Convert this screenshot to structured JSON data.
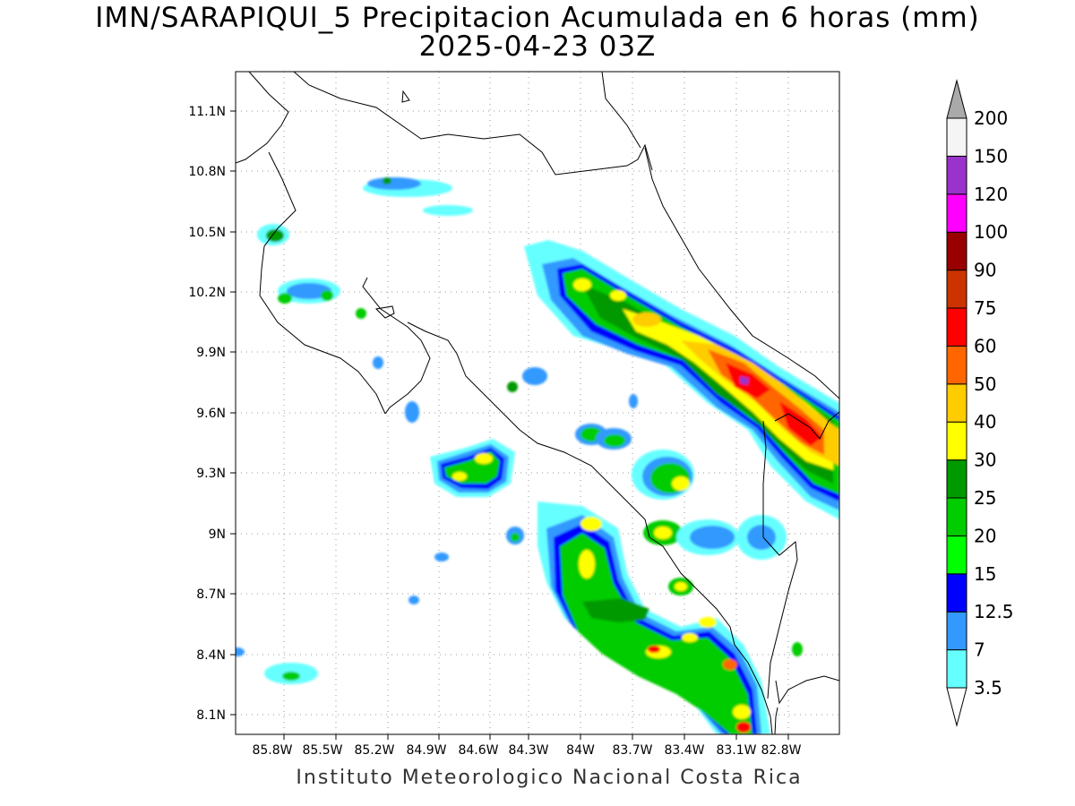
{
  "title_line1": "IMN/SARAPIQUI_5 Precipitacion Acumulada en 6 horas (mm)",
  "title_line2": "2025-04-23 03Z",
  "credit": "Instituto Meteorologico Nacional Costa Rica",
  "lat_ticks": [
    "11.1N",
    "10.8N",
    "10.5N",
    "10.2N",
    "9.9N",
    "9.6N",
    "9.3N",
    "9N",
    "8.7N",
    "8.4N",
    "8.1N"
  ],
  "lon_ticks": [
    "85.8W",
    "85.5W",
    "85.2W",
    "84.9W",
    "84.6W",
    "84.3W",
    "84W",
    "83.7W",
    "83.4W",
    "83.1W",
    "82.8W"
  ],
  "colorbar": {
    "labels": [
      "3.5",
      "7",
      "12.5",
      "15",
      "20",
      "25",
      "30",
      "40",
      "50",
      "60",
      "75",
      "90",
      "100",
      "120",
      "150",
      "200"
    ],
    "colors": [
      "#66ffff",
      "#3399ff",
      "#0000ff",
      "#00ff00",
      "#00cc00",
      "#009900",
      "#ffff00",
      "#ffcc00",
      "#ff6600",
      "#ff0000",
      "#cc3300",
      "#990000",
      "#ff00ff",
      "#9933cc",
      "#f5f5f5",
      "#aaaaaa"
    ]
  }
}
